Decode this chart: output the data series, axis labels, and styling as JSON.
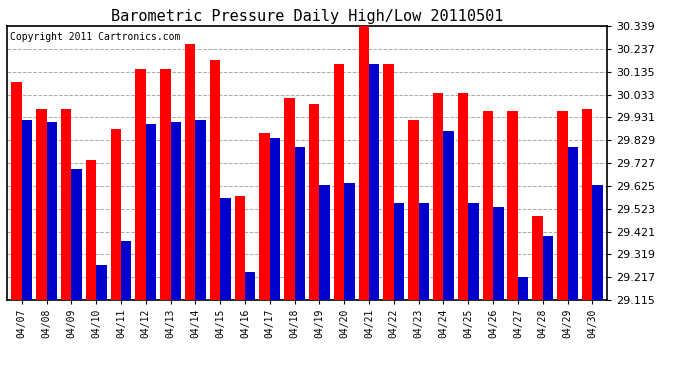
{
  "title": "Barometric Pressure Daily High/Low 20110501",
  "copyright": "Copyright 2011 Cartronics.com",
  "categories": [
    "04/07",
    "04/08",
    "04/09",
    "04/10",
    "04/11",
    "04/12",
    "04/13",
    "04/14",
    "04/15",
    "04/16",
    "04/17",
    "04/18",
    "04/19",
    "04/20",
    "04/21",
    "04/22",
    "04/23",
    "04/24",
    "04/25",
    "04/26",
    "04/27",
    "04/28",
    "04/29",
    "04/30"
  ],
  "high": [
    30.09,
    29.97,
    29.97,
    29.74,
    29.88,
    30.15,
    30.15,
    30.26,
    30.19,
    29.58,
    29.86,
    30.02,
    29.99,
    30.17,
    30.34,
    30.17,
    29.92,
    30.04,
    30.04,
    29.96,
    29.96,
    29.49,
    29.96,
    29.97
  ],
  "low": [
    29.92,
    29.91,
    29.7,
    29.27,
    29.38,
    29.9,
    29.91,
    29.92,
    29.57,
    29.24,
    29.84,
    29.8,
    29.63,
    29.64,
    30.17,
    29.55,
    29.55,
    29.87,
    29.55,
    29.53,
    29.22,
    29.4,
    29.8,
    29.63
  ],
  "ylim_min": 29.115,
  "ylim_max": 30.339,
  "yticks": [
    29.115,
    29.217,
    29.319,
    29.421,
    29.523,
    29.625,
    29.727,
    29.829,
    29.931,
    30.033,
    30.135,
    30.237,
    30.339
  ],
  "high_color": "#ff0000",
  "low_color": "#0000cc",
  "background_color": "#ffffff",
  "plot_bg_color": "#ffffff",
  "grid_color": "#aaaaaa",
  "title_fontsize": 11,
  "copyright_fontsize": 7,
  "bar_width": 0.42,
  "figsize": [
    6.9,
    3.75
  ],
  "dpi": 100
}
